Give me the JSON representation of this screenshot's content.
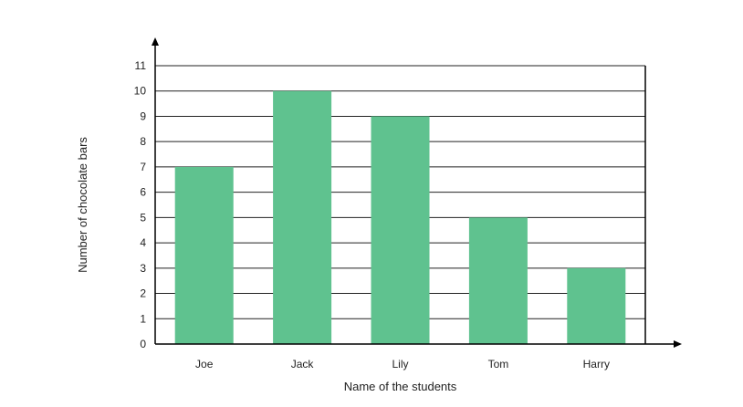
{
  "chart_data": {
    "type": "bar",
    "categories": [
      "Joe",
      "Jack",
      "Lily",
      "Tom",
      "Harry"
    ],
    "values": [
      7,
      10,
      9,
      5,
      3
    ],
    "title": "",
    "xlabel": "Name of the students",
    "ylabel": "Number of chocolate bars",
    "ylim": [
      0,
      11
    ],
    "yticks": [
      0,
      1,
      2,
      3,
      4,
      5,
      6,
      7,
      8,
      9,
      10,
      11
    ],
    "grid": true,
    "legend": "none",
    "colors": {
      "bar": "#5fc28f",
      "grid": "#222222",
      "axis": "#000000"
    }
  }
}
